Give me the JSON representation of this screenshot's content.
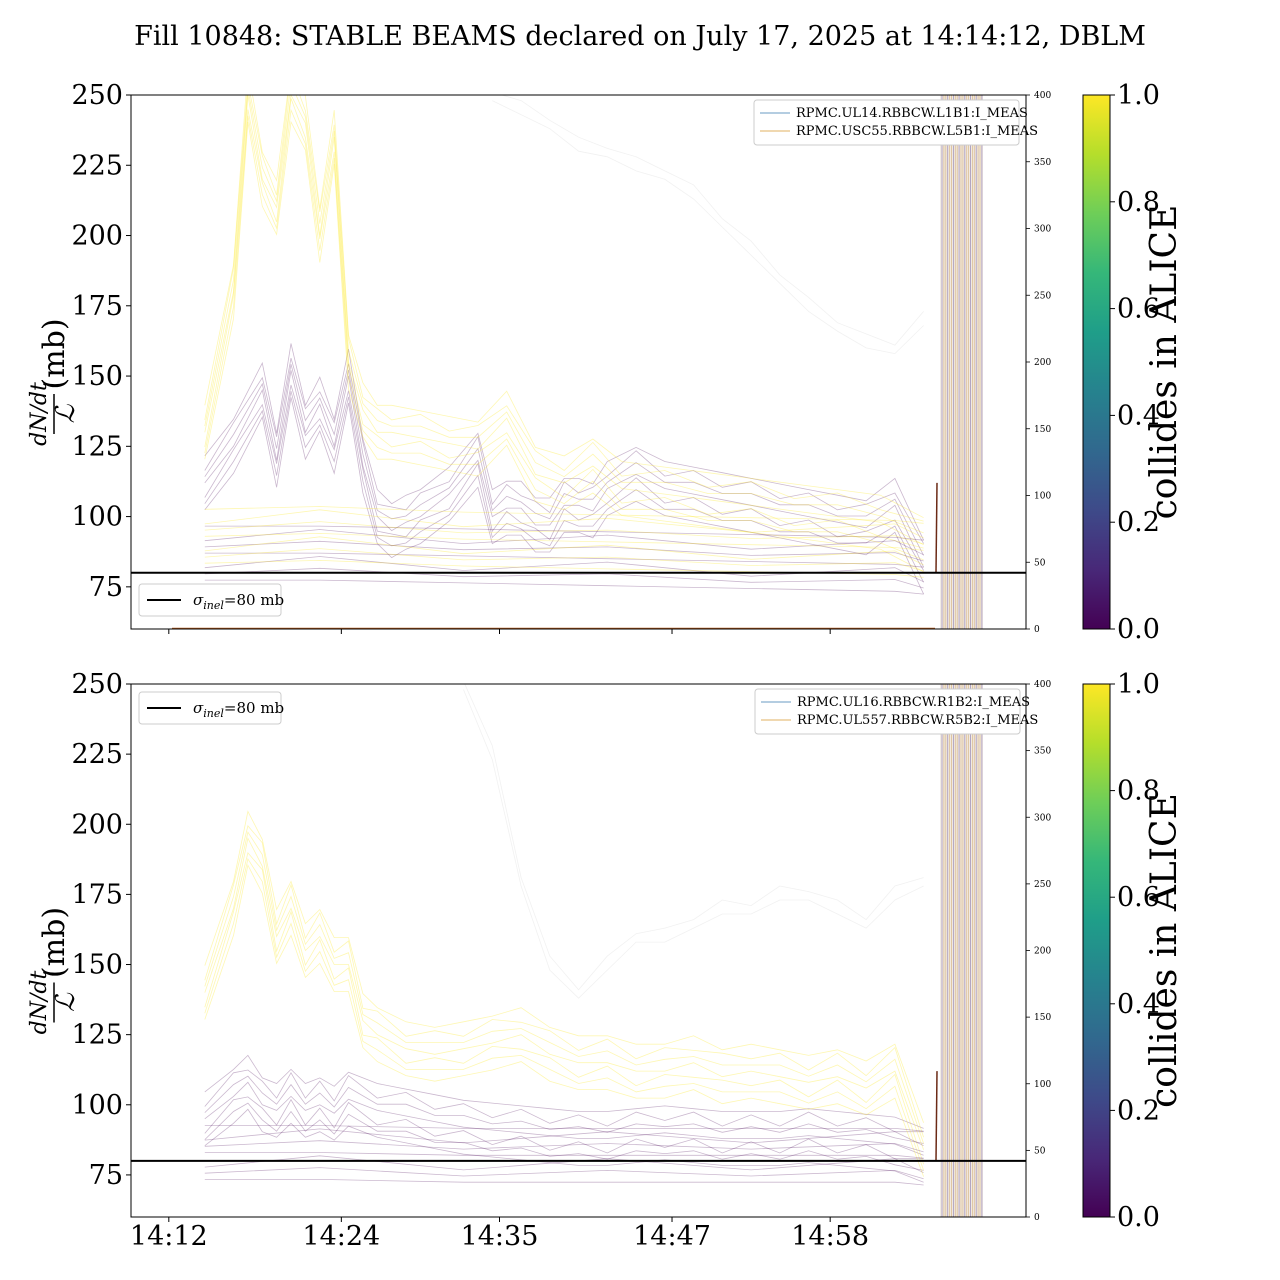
{
  "title": "Fill 10848: STABLE BEAMS declared on July 17, 2025 at 14:14:12, DBLM",
  "chart_data": [
    {
      "type": "line",
      "panel": "top",
      "ylabel_num": "dN/dt",
      "ylabel_den": "ℒ",
      "ylabel_unit": "(mb)",
      "ylim": [
        60,
        250
      ],
      "yticks": [
        "75",
        "100",
        "125",
        "150",
        "175",
        "200",
        "225",
        "250"
      ],
      "right_ylim": [
        0,
        400
      ],
      "right_yticks": [
        "0",
        "50",
        "100",
        "150",
        "200",
        "250",
        "300",
        "350",
        "400"
      ],
      "xlim_minutes": [
        0,
        53
      ],
      "reference_line": {
        "value": 80,
        "label_symbol": "σ",
        "label_sub": "inel",
        "label_rest": "=80 mb",
        "color": "#000000"
      },
      "legend_position": "top-right",
      "legend": [
        {
          "name": "RPMC.UL14.RBBCW.L1B1:I_MEAS",
          "color": "#6a9bc3"
        },
        {
          "name": "RPMC.USC55.RBBCW.L5B1:I_MEAS",
          "color": "#e0b060"
        }
      ],
      "colorbar": {
        "label": "collides in ALICE",
        "range": [
          0,
          1
        ],
        "ticks": [
          "0.0",
          "0.2",
          "0.4",
          "0.6",
          "0.8",
          "1.0"
        ],
        "colormap": "viridis"
      },
      "series_note": "many per-bunch curves",
      "series_groups": [
        {
          "collides": 0.0,
          "color": "#440154",
          "x": [
            2,
            4,
            6,
            7,
            8,
            9,
            10,
            11,
            12,
            13,
            14,
            15,
            16,
            17,
            19,
            21,
            22,
            23,
            24,
            25,
            26,
            27,
            28,
            29,
            30,
            32,
            34,
            36,
            38,
            40,
            42,
            44,
            46,
            48,
            50,
            52
          ],
          "y": [
            112,
            125,
            145,
            120,
            152,
            130,
            140,
            125,
            150,
            118,
            100,
            95,
            98,
            100,
            108,
            120,
            100,
            103,
            103,
            97,
            97,
            104,
            104,
            102,
            110,
            115,
            110,
            108,
            106,
            104,
            102,
            100,
            98,
            96,
            104,
            82
          ]
        },
        {
          "collides": 1.0,
          "color": "#fde725",
          "x": [
            2,
            4,
            5,
            6,
            7,
            8,
            9,
            10,
            11,
            12,
            13,
            14,
            15,
            17,
            19,
            21,
            23,
            25,
            27,
            29,
            31,
            34,
            37,
            40,
            43,
            46,
            49,
            52
          ],
          "y": [
            130,
            180,
            250,
            220,
            210,
            250,
            240,
            200,
            235,
            155,
            138,
            130,
            130,
            128,
            126,
            124,
            135,
            115,
            112,
            118,
            110,
            108,
            106,
            104,
            102,
            100,
            98,
            90
          ]
        },
        {
          "collides": 0.0,
          "color": "#440154",
          "x": [
            2,
            10,
            20,
            30,
            40,
            50,
            52
          ],
          "y": [
            87,
            87,
            86,
            85,
            84,
            83,
            82
          ]
        },
        {
          "collides": 1.0,
          "color": "#fde725",
          "x": [
            2,
            10,
            20,
            30,
            40,
            50,
            52
          ],
          "y": [
            93,
            94,
            92,
            91,
            90,
            89,
            88
          ]
        },
        {
          "collides": 0.5,
          "color": "#d8d8d8",
          "x": [
            22,
            24,
            26,
            28,
            30,
            32,
            34,
            36,
            38,
            40,
            42,
            44,
            46,
            48,
            50,
            52
          ],
          "y": [
            250,
            245,
            240,
            232,
            230,
            225,
            222,
            215,
            205,
            195,
            185,
            175,
            168,
            162,
            160,
            170
          ]
        }
      ],
      "blm_start_minute": 53.0,
      "blm_end_minute": 55.6
    },
    {
      "type": "line",
      "panel": "bottom",
      "ylabel_num": "dN/dt",
      "ylabel_den": "ℒ",
      "ylabel_unit": "(mb)",
      "ylim": [
        60,
        250
      ],
      "yticks": [
        "75",
        "100",
        "125",
        "150",
        "175",
        "200",
        "225",
        "250"
      ],
      "right_ylim": [
        0,
        400
      ],
      "right_yticks": [
        "0",
        "50",
        "100",
        "150",
        "200",
        "250",
        "300",
        "350",
        "400"
      ],
      "xticks": [
        "14:12",
        "14:24",
        "14:35",
        "14:47",
        "14:58"
      ],
      "xlim_minutes": [
        0,
        53
      ],
      "reference_line": {
        "value": 80,
        "label_symbol": "σ",
        "label_sub": "inel",
        "label_rest": "=80 mb",
        "color": "#000000"
      },
      "legend_position": "top-right",
      "legend": [
        {
          "name": "RPMC.UL16.RBBCW.R1B2:I_MEAS",
          "color": "#6a9bc3"
        },
        {
          "name": "RPMC.UL557.RBBCW.R5B2:I_MEAS",
          "color": "#e0b060"
        }
      ],
      "colorbar": {
        "label": "collides in ALICE",
        "range": [
          0,
          1
        ],
        "ticks": [
          "0.0",
          "0.2",
          "0.4",
          "0.6",
          "0.8",
          "1.0"
        ],
        "colormap": "viridis"
      },
      "series_note": "many per-bunch curves",
      "series_groups": [
        {
          "collides": 0.0,
          "color": "#440154",
          "x": [
            2,
            4,
            5,
            6,
            7,
            8,
            9,
            10,
            11,
            12,
            14,
            16,
            18,
            20,
            22,
            24,
            26,
            28,
            30,
            32,
            34,
            36,
            38,
            40,
            42,
            44,
            46,
            48,
            50,
            52
          ],
          "y": [
            95,
            103,
            108,
            100,
            98,
            103,
            98,
            100,
            97,
            102,
            98,
            96,
            94,
            92,
            91,
            90,
            89,
            88,
            88,
            89,
            90,
            89,
            88,
            88,
            88,
            89,
            88,
            87,
            86,
            82
          ]
        },
        {
          "collides": 1.0,
          "color": "#fde725",
          "x": [
            2,
            4,
            5,
            6,
            7,
            8,
            9,
            10,
            11,
            12,
            13,
            14,
            16,
            18,
            20,
            22,
            24,
            26,
            28,
            30,
            32,
            34,
            36,
            38,
            40,
            42,
            44,
            46,
            48,
            50,
            52
          ],
          "y": [
            140,
            170,
            195,
            185,
            160,
            170,
            155,
            160,
            150,
            150,
            130,
            125,
            120,
            118,
            120,
            122,
            125,
            118,
            115,
            115,
            112,
            112,
            115,
            110,
            112,
            110,
            108,
            110,
            106,
            112,
            84
          ]
        },
        {
          "collides": 0.5,
          "color": "#d8d8d8",
          "x": [
            20,
            22,
            24,
            26,
            28,
            30,
            32,
            34,
            36,
            38,
            40,
            42,
            44,
            46,
            48,
            50,
            52
          ],
          "y": [
            250,
            225,
            180,
            150,
            140,
            150,
            160,
            160,
            165,
            170,
            170,
            175,
            175,
            170,
            165,
            175,
            180
          ]
        },
        {
          "collides": 0.0,
          "color": "#440154",
          "x": [
            2,
            10,
            20,
            30,
            40,
            50,
            52
          ],
          "y": [
            83,
            83,
            82,
            82,
            82,
            82,
            81
          ]
        }
      ],
      "blm_start_minute": 53.0,
      "blm_end_minute": 55.6
    }
  ]
}
